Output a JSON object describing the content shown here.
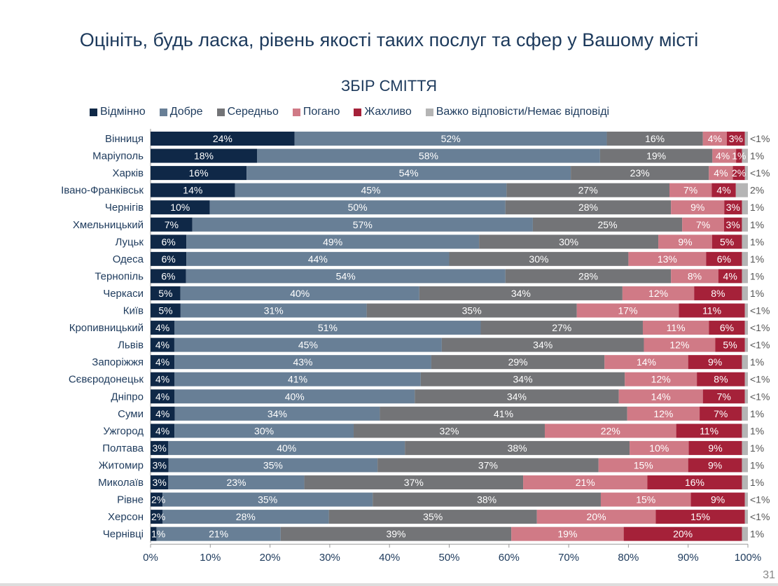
{
  "title": "Оцініть, будь ласка, рівень якості таких послуг та сфер у Вашому місті",
  "page_number": "31",
  "chart_data": {
    "type": "bar",
    "orientation": "horizontal-stacked-100",
    "title": "ЗБІР СМІТТЯ",
    "legend_position": "top",
    "xlim": [
      0,
      100
    ],
    "x_ticks": [
      "0%",
      "10%",
      "20%",
      "30%",
      "40%",
      "50%",
      "60%",
      "70%",
      "80%",
      "90%",
      "100%"
    ],
    "series": [
      {
        "name": "Відмінно",
        "color": "#0f2847"
      },
      {
        "name": "Добре",
        "color": "#687f96"
      },
      {
        "name": "Середньо",
        "color": "#737477"
      },
      {
        "name": "Погано",
        "color": "#d07a86"
      },
      {
        "name": "Жахливо",
        "color": "#a52139"
      },
      {
        "name": "Важко відповісти/Немає відповіді",
        "color": "#b5b5b5"
      }
    ],
    "categories": [
      "Вінниця",
      "Маріуполь",
      "Харків",
      "Івано-Франківськ",
      "Чернігів",
      "Хмельницький",
      "Луцьк",
      "Одеса",
      "Тернопіль",
      "Черкаси",
      "Київ",
      "Кропивницький",
      "Львів",
      "Запоріжжя",
      "Сєвєродонецьк",
      "Дніпро",
      "Суми",
      "Ужгород",
      "Полтава",
      "Житомир",
      "Миколаїв",
      "Рівне",
      "Херсон",
      "Чернівці"
    ],
    "values": [
      [
        "24%",
        "52%",
        "16%",
        "4%",
        "3%",
        "<1%"
      ],
      [
        "18%",
        "58%",
        "19%",
        "4%",
        "1%",
        "1%"
      ],
      [
        "16%",
        "54%",
        "23%",
        "4%",
        "2%",
        "<1%"
      ],
      [
        "14%",
        "45%",
        "27%",
        "7%",
        "4%",
        "2%"
      ],
      [
        "10%",
        "50%",
        "28%",
        "9%",
        "3%",
        "1%"
      ],
      [
        "7%",
        "57%",
        "25%",
        "7%",
        "3%",
        "1%"
      ],
      [
        "6%",
        "49%",
        "30%",
        "9%",
        "5%",
        "1%"
      ],
      [
        "6%",
        "44%",
        "30%",
        "13%",
        "6%",
        "1%"
      ],
      [
        "6%",
        "54%",
        "28%",
        "8%",
        "4%",
        "1%"
      ],
      [
        "5%",
        "40%",
        "34%",
        "12%",
        "8%",
        "1%"
      ],
      [
        "5%",
        "31%",
        "35%",
        "17%",
        "11%",
        "<1%"
      ],
      [
        "4%",
        "51%",
        "27%",
        "11%",
        "6%",
        "<1%"
      ],
      [
        "4%",
        "45%",
        "34%",
        "12%",
        "5%",
        "<1%"
      ],
      [
        "4%",
        "43%",
        "29%",
        "14%",
        "9%",
        "1%"
      ],
      [
        "4%",
        "41%",
        "34%",
        "12%",
        "8%",
        "<1%"
      ],
      [
        "4%",
        "40%",
        "34%",
        "14%",
        "7%",
        "<1%"
      ],
      [
        "4%",
        "34%",
        "41%",
        "12%",
        "7%",
        "1%"
      ],
      [
        "4%",
        "30%",
        "32%",
        "22%",
        "11%",
        "1%"
      ],
      [
        "3%",
        "40%",
        "38%",
        "10%",
        "9%",
        "1%"
      ],
      [
        "3%",
        "35%",
        "37%",
        "15%",
        "9%",
        "1%"
      ],
      [
        "3%",
        "23%",
        "37%",
        "21%",
        "16%",
        "1%"
      ],
      [
        "2%",
        "35%",
        "38%",
        "15%",
        "9%",
        "<1%"
      ],
      [
        "2%",
        "28%",
        "35%",
        "20%",
        "15%",
        "<1%"
      ],
      [
        "1%",
        "21%",
        "39%",
        "19%",
        "20%",
        "1%"
      ]
    ]
  }
}
